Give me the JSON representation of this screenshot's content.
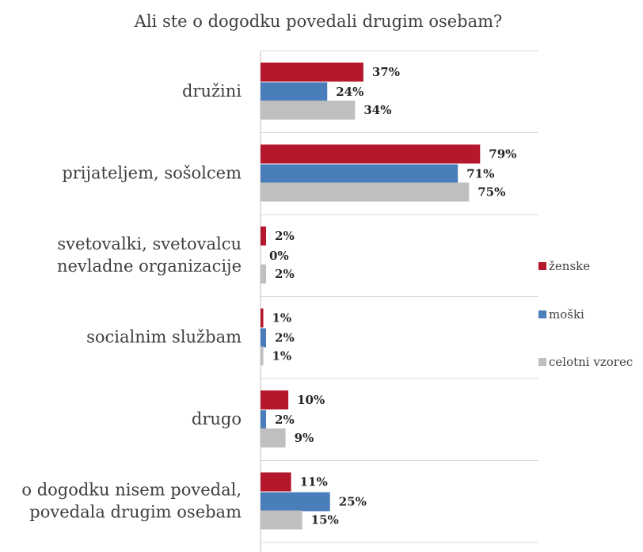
{
  "chart_data": {
    "type": "bar",
    "orientation": "horizontal",
    "title": "Ali ste o dogodku povedali drugim osebam?",
    "categories": [
      [
        "družini"
      ],
      [
        "prijateljem, sošolcem"
      ],
      [
        "svetovalki, svetovalcu",
        "nevladne organizacije"
      ],
      [
        "socialnim službam"
      ],
      [
        "drugo"
      ],
      [
        "o dogodku nisem povedal,",
        "povedala drugim osebam"
      ]
    ],
    "series": [
      {
        "name": "ženske",
        "color": "#b5172c",
        "values": [
          37,
          79,
          2,
          1,
          10,
          11
        ],
        "labels": [
          "37%",
          "79%",
          "2%",
          "1%",
          "10%",
          "11%"
        ]
      },
      {
        "name": "moški",
        "color": "#4a7ebb",
        "values": [
          24,
          71,
          0,
          2,
          2,
          25
        ],
        "labels": [
          "24%",
          "71%",
          "0%",
          "2%",
          "2%",
          "25%"
        ]
      },
      {
        "name": "celotni vzorec",
        "color": "#bfbfbf",
        "values": [
          34,
          75,
          2,
          1,
          9,
          15
        ],
        "labels": [
          "34%",
          "75%",
          "2%",
          "1%",
          "9%",
          "15%"
        ]
      }
    ],
    "value_unit": "%",
    "xlim": [
      0,
      100
    ],
    "grid": "horizontal category separators",
    "legend_position": "right"
  }
}
